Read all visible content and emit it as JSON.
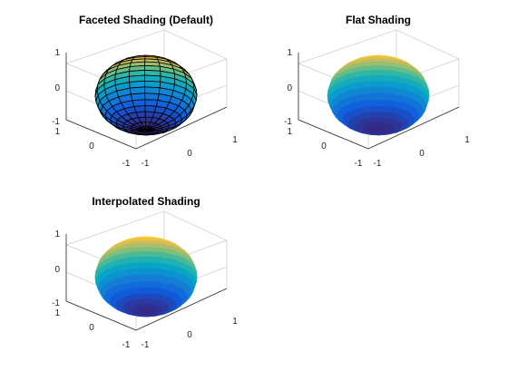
{
  "figure": {
    "background": "#ffffff",
    "colormap": "parula",
    "colormap_stops": [
      "#352a87",
      "#0f5cdd",
      "#1481d6",
      "#06a4ca",
      "#2eb7a4",
      "#87bf77",
      "#d1bb59",
      "#fec832",
      "#f9fb0e"
    ]
  },
  "chart_data": [
    {
      "type": "surface3d",
      "surface": "sphere",
      "shading": "faceted",
      "title": "Faceted Shading (Default)",
      "xlim": [
        -1,
        1
      ],
      "ylim": [
        -1,
        1
      ],
      "zlim": [
        -1,
        1
      ],
      "x_ticks": [
        "-1",
        "0",
        "1"
      ],
      "y_ticks": [
        "-1",
        "0",
        "1"
      ],
      "z_ticks": [
        "-1",
        "0",
        "1"
      ],
      "view": {
        "azimuth": -37.5,
        "elevation": 30
      },
      "edge_color": "#000000",
      "meridians": 20,
      "parallels": 20
    },
    {
      "type": "surface3d",
      "surface": "sphere",
      "shading": "flat",
      "title": "Flat Shading",
      "xlim": [
        -1,
        1
      ],
      "ylim": [
        -1,
        1
      ],
      "zlim": [
        -1,
        1
      ],
      "x_ticks": [
        "-1",
        "0",
        "1"
      ],
      "y_ticks": [
        "-1",
        "0",
        "1"
      ],
      "z_ticks": [
        "-1",
        "0",
        "1"
      ],
      "view": {
        "azimuth": -37.5,
        "elevation": 30
      },
      "meridians": 20,
      "parallels": 20
    },
    {
      "type": "surface3d",
      "surface": "sphere",
      "shading": "interp",
      "title": "Interpolated Shading",
      "xlim": [
        -1,
        1
      ],
      "ylim": [
        -1,
        1
      ],
      "zlim": [
        -1,
        1
      ],
      "x_ticks": [
        "-1",
        "0",
        "1"
      ],
      "y_ticks": [
        "-1",
        "0",
        "1"
      ],
      "z_ticks": [
        "-1",
        "0",
        "1"
      ],
      "view": {
        "azimuth": -37.5,
        "elevation": 30
      },
      "meridians": 20,
      "parallels": 20
    }
  ]
}
